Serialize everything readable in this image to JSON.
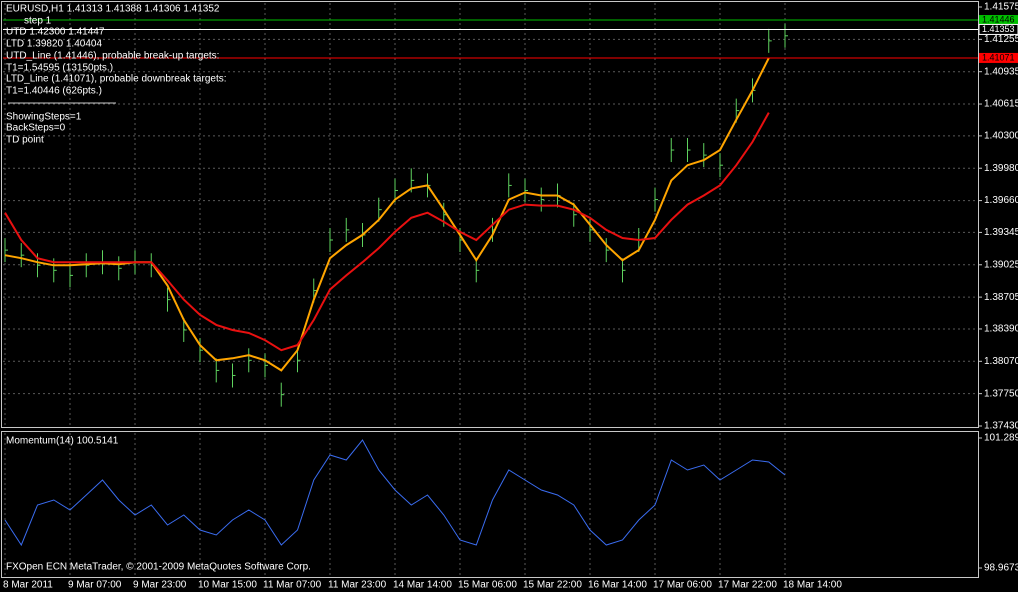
{
  "chart_data": [
    {
      "type": "line",
      "annotations": [
        "EURUSD,H1  1.41313 1.41388 1.41306 1.41352",
        "step 1",
        "UTD 1.42300  1.41447",
        "LTD  1.39820  1.40404",
        "UTD_Line (1.41446), probable break-up targets:",
        "T1=1.54595 (13150pts.)",
        "LTD_Line (1.41071), probable downbreak targets:",
        "T1=1.40446 (626pts.)",
        "ShowingSteps=1",
        "BackSteps=0",
        "TD point"
      ],
      "categories": [
        "8 Mar 2011",
        null,
        null,
        null,
        "9 Mar 07:00",
        null,
        null,
        null,
        "9 Mar 23:00",
        null,
        null,
        null,
        "10 Mar 15:00",
        null,
        null,
        null,
        "11 Mar 07:00",
        null,
        null,
        null,
        "11 Mar 23:00",
        null,
        null,
        null,
        "14 Mar 14:00",
        null,
        null,
        null,
        "15 Mar 06:00",
        null,
        null,
        null,
        "15 Mar 22:00",
        null,
        null,
        null,
        "16 Mar 14:00",
        null,
        null,
        null,
        "17 Mar 06:00",
        null,
        null,
        null,
        "17 Mar 22:00",
        null,
        null,
        null,
        "18 Mar 14:00"
      ],
      "series": [
        {
          "color": "#5fd35f",
          "values": [
            1.3917,
            1.3912,
            1.3902,
            1.3897,
            1.3892,
            1.3902,
            1.3905,
            1.3899,
            1.3905,
            1.3902,
            1.3868,
            1.3838,
            1.3818,
            1.3798,
            1.3793,
            1.3808,
            1.3803,
            1.3774,
            1.3808,
            1.3877,
            1.3927,
            1.3937,
            1.3932,
            1.3957,
            1.3976,
            1.3986,
            1.3981,
            1.3952,
            1.3927,
            1.3897,
            1.3937,
            1.3981,
            1.3976,
            1.3967,
            1.3971,
            1.3952,
            1.3937,
            1.3917,
            1.3897,
            1.3927,
            1.3967,
            1.4016,
            1.4016,
            1.4011,
            1.4001,
            1.4055,
            1.4075,
            1.4124,
            1.4129
          ]
        },
        {
          "color": "#ffa500",
          "values": [
            1.3912,
            1.3909,
            1.3905,
            1.3902,
            1.3902,
            1.3903,
            1.3904,
            1.3903,
            1.3905,
            1.3905,
            1.3882,
            1.3848,
            1.3823,
            1.3808,
            1.381,
            1.3813,
            1.3808,
            1.3798,
            1.3818,
            1.3868,
            1.3909,
            1.3922,
            1.3932,
            1.3947,
            1.3967,
            1.3978,
            1.3981,
            1.3957,
            1.3932,
            1.3907,
            1.3932,
            1.3967,
            1.3974,
            1.3971,
            1.3971,
            1.3962,
            1.3942,
            1.3922,
            1.3907,
            1.3917,
            1.3947,
            1.3986,
            1.4001,
            1.4006,
            1.4016,
            1.4046,
            1.4075,
            1.4107,
            null
          ]
        },
        {
          "color": "#e81010",
          "values": [
            1.3954,
            1.3927,
            1.3909,
            1.3905,
            1.3905,
            1.3905,
            1.3905,
            1.3905,
            1.3905,
            1.3905,
            1.3887,
            1.3868,
            1.3853,
            1.3843,
            1.3838,
            1.3835,
            1.3828,
            1.3818,
            1.3823,
            1.3848,
            1.3878,
            1.3892,
            1.3905,
            1.3919,
            1.3935,
            1.3949,
            1.3954,
            1.3945,
            1.3935,
            1.3927,
            1.3942,
            1.3957,
            1.3962,
            1.3961,
            1.3961,
            1.3957,
            1.3949,
            1.3937,
            1.3929,
            1.3927,
            1.3929,
            1.3947,
            1.3962,
            1.3971,
            1.3981,
            1.4001,
            1.4024,
            1.4053,
            null
          ]
        }
      ],
      "levels": [
        {
          "value": 1.41446,
          "color": "#00c000"
        },
        {
          "value": 1.41353,
          "color": "#ffffff"
        },
        {
          "value": 1.41071,
          "color": "#ff0000"
        }
      ],
      "ylim": [
        1.3743,
        1.41575
      ],
      "yticks": [
        {
          "value": 1.41575,
          "label": "1.41575"
        },
        {
          "value": 1.41255,
          "label": "1.41255"
        },
        {
          "value": 1.40935,
          "label": "1.40935"
        },
        {
          "value": 1.40615,
          "label": "1.40615"
        },
        {
          "value": 1.403,
          "label": "1.40300"
        },
        {
          "value": 1.3998,
          "label": "1.39980"
        },
        {
          "value": 1.3966,
          "label": "1.39660"
        },
        {
          "value": 1.39345,
          "label": "1.39345"
        },
        {
          "value": 1.39025,
          "label": "1.39025"
        },
        {
          "value": 1.38705,
          "label": "1.38705"
        },
        {
          "value": 1.3839,
          "label": "1.38390"
        },
        {
          "value": 1.3807,
          "label": "1.38070"
        },
        {
          "value": 1.3775,
          "label": "1.37750"
        },
        {
          "value": 1.3743,
          "label": "1.37430"
        }
      ],
      "grid": true
    },
    {
      "type": "line",
      "title": "Momentum(14) 100.5141",
      "series": [
        {
          "color": "#3a6cf0",
          "values": [
            99.824,
            99.378,
            100.092,
            100.182,
            100.003,
            100.271,
            100.539,
            100.182,
            99.914,
            100.092,
            99.735,
            99.914,
            99.646,
            99.557,
            99.824,
            100.003,
            99.824,
            99.378,
            99.646,
            100.539,
            100.985,
            100.896,
            101.253,
            100.717,
            100.36,
            100.092,
            100.271,
            99.914,
            99.467,
            99.378,
            100.182,
            100.717,
            100.539,
            100.36,
            100.271,
            100.092,
            99.646,
            99.378,
            99.467,
            99.824,
            100.092,
            100.896,
            100.717,
            100.807,
            100.539,
            100.717,
            100.896,
            100.86,
            100.628
          ]
        }
      ],
      "ylim": [
        98.9673,
        101.289
      ],
      "yticks": [
        101.289,
        98.9673
      ],
      "grid": true
    }
  ],
  "footer": "FXOpen ECN MetaTrader, © 2001-2009 MetaQuotes Software Corp."
}
